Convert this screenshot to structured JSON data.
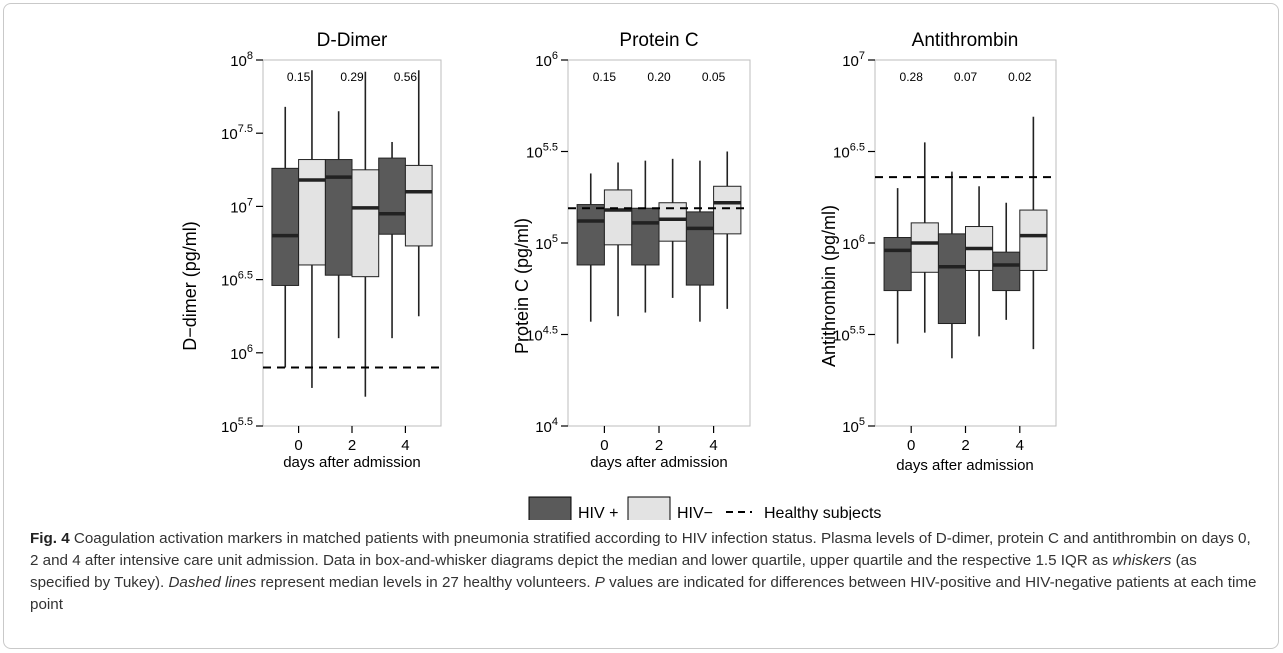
{
  "colors": {
    "hiv_pos": "#5a5a5a",
    "hiv_neg": "#e3e3e3",
    "axis": "#000000",
    "panel_border": "#bdbdbd"
  },
  "chart_data": [
    {
      "type": "box",
      "title": "D-Dimer",
      "ylabel": "D−dimer (pg/ml)",
      "xlabel": "days after admission",
      "scale": "log10",
      "ylim": [
        5.5,
        8
      ],
      "yticks": [
        {
          "value": 5.5,
          "base": "10",
          "exp": "5.5"
        },
        {
          "value": 6,
          "base": "10",
          "exp": "6"
        },
        {
          "value": 6.5,
          "base": "10",
          "exp": "6.5"
        },
        {
          "value": 7,
          "base": "10",
          "exp": "7"
        },
        {
          "value": 7.5,
          "base": "10",
          "exp": "7.5"
        },
        {
          "value": 8,
          "base": "10",
          "exp": "8"
        }
      ],
      "categories": [
        "0",
        "2",
        "4"
      ],
      "p_values": [
        "0.15",
        "0.29",
        "0.56"
      ],
      "healthy_median": 5.9,
      "series": [
        {
          "name": "HIV +",
          "boxes": [
            {
              "low": 5.9,
              "q1": 6.46,
              "median": 6.8,
              "q3": 7.26,
              "high": 7.68
            },
            {
              "low": 6.1,
              "q1": 6.53,
              "median": 7.2,
              "q3": 7.32,
              "high": 7.65
            },
            {
              "low": 6.1,
              "q1": 6.81,
              "median": 6.95,
              "q3": 7.33,
              "high": 7.44
            }
          ]
        },
        {
          "name": "HIV−",
          "boxes": [
            {
              "low": 5.76,
              "q1": 6.6,
              "median": 7.18,
              "q3": 7.32,
              "high": 7.93
            },
            {
              "low": 5.7,
              "q1": 6.52,
              "median": 6.99,
              "q3": 7.25,
              "high": 7.92
            },
            {
              "low": 6.25,
              "q1": 6.73,
              "median": 7.1,
              "q3": 7.28,
              "high": 7.93
            }
          ]
        }
      ]
    },
    {
      "type": "box",
      "title": "Protein C",
      "ylabel": "Protein C (pg/ml)",
      "xlabel": "days after admission",
      "scale": "log10",
      "ylim": [
        4,
        6
      ],
      "yticks": [
        {
          "value": 4,
          "base": "10",
          "exp": "4"
        },
        {
          "value": 4.5,
          "base": "10",
          "exp": "4.5"
        },
        {
          "value": 5,
          "base": "10",
          "exp": "5"
        },
        {
          "value": 5.5,
          "base": "10",
          "exp": "5.5"
        },
        {
          "value": 6,
          "base": "10",
          "exp": "6"
        }
      ],
      "categories": [
        "0",
        "2",
        "4"
      ],
      "p_values": [
        "0.15",
        "0.20",
        "0.05"
      ],
      "healthy_median": 5.19,
      "series": [
        {
          "name": "HIV +",
          "boxes": [
            {
              "low": 4.57,
              "q1": 4.88,
              "median": 5.12,
              "q3": 5.21,
              "high": 5.38
            },
            {
              "low": 4.62,
              "q1": 4.88,
              "median": 5.11,
              "q3": 5.19,
              "high": 5.45
            },
            {
              "low": 4.57,
              "q1": 4.77,
              "median": 5.08,
              "q3": 5.17,
              "high": 5.45
            }
          ]
        },
        {
          "name": "HIV−",
          "boxes": [
            {
              "low": 4.6,
              "q1": 4.99,
              "median": 5.18,
              "q3": 5.29,
              "high": 5.44
            },
            {
              "low": 4.7,
              "q1": 5.01,
              "median": 5.13,
              "q3": 5.22,
              "high": 5.46
            },
            {
              "low": 4.64,
              "q1": 5.05,
              "median": 5.22,
              "q3": 5.31,
              "high": 5.5
            }
          ]
        }
      ]
    },
    {
      "type": "box",
      "title": "Antithrombin",
      "ylabel": "Antithrombin (pg/ml)",
      "xlabel": "days after admission",
      "scale": "log10",
      "ylim": [
        5,
        7
      ],
      "yticks": [
        {
          "value": 5,
          "base": "10",
          "exp": "5"
        },
        {
          "value": 5.5,
          "base": "10",
          "exp": "5.5"
        },
        {
          "value": 6,
          "base": "10",
          "exp": "6"
        },
        {
          "value": 6.5,
          "base": "10",
          "exp": "6.5"
        },
        {
          "value": 7,
          "base": "10",
          "exp": "7"
        }
      ],
      "categories": [
        "0",
        "2",
        "4"
      ],
      "p_values": [
        "0.28",
        "0.07",
        "0.02"
      ],
      "healthy_median": 6.36,
      "series": [
        {
          "name": "HIV +",
          "boxes": [
            {
              "low": 5.45,
              "q1": 5.74,
              "median": 5.96,
              "q3": 6.03,
              "high": 6.3
            },
            {
              "low": 5.37,
              "q1": 5.56,
              "median": 5.87,
              "q3": 6.05,
              "high": 6.39
            },
            {
              "low": 5.58,
              "q1": 5.74,
              "median": 5.88,
              "q3": 5.95,
              "high": 6.22
            }
          ]
        },
        {
          "name": "HIV−",
          "boxes": [
            {
              "low": 5.51,
              "q1": 5.84,
              "median": 6.0,
              "q3": 6.11,
              "high": 6.55
            },
            {
              "low": 5.49,
              "q1": 5.85,
              "median": 5.97,
              "q3": 6.09,
              "high": 6.31
            },
            {
              "low": 5.42,
              "q1": 5.85,
              "median": 6.04,
              "q3": 6.18,
              "high": 6.69
            }
          ]
        }
      ]
    }
  ],
  "legend": {
    "hiv_pos_label": "HIV +",
    "hiv_neg_label": "HIV−",
    "healthy_label": "Healthy subjects"
  },
  "caption": {
    "label": "Fig. 4",
    "part1": " Coagulation activation markers in matched patients with pneumonia stratified according to HIV infection status. Plasma levels of D-dimer, protein C and antithrombin on days 0, 2 and 4 after intensive care unit admission. Data in box-and-whisker diagrams depict the median and lower quartile, upper quartile and the respective 1.5 IQR as ",
    "whiskers": "whiskers",
    "part2": " (as specified by Tukey). ",
    "dashed": "Dashed lines",
    "part3": " represent median levels in 27 healthy volunteers. ",
    "p": "P",
    "part4": " values are indicated for differences between HIV-positive and HIV-negative patients at each time point"
  }
}
